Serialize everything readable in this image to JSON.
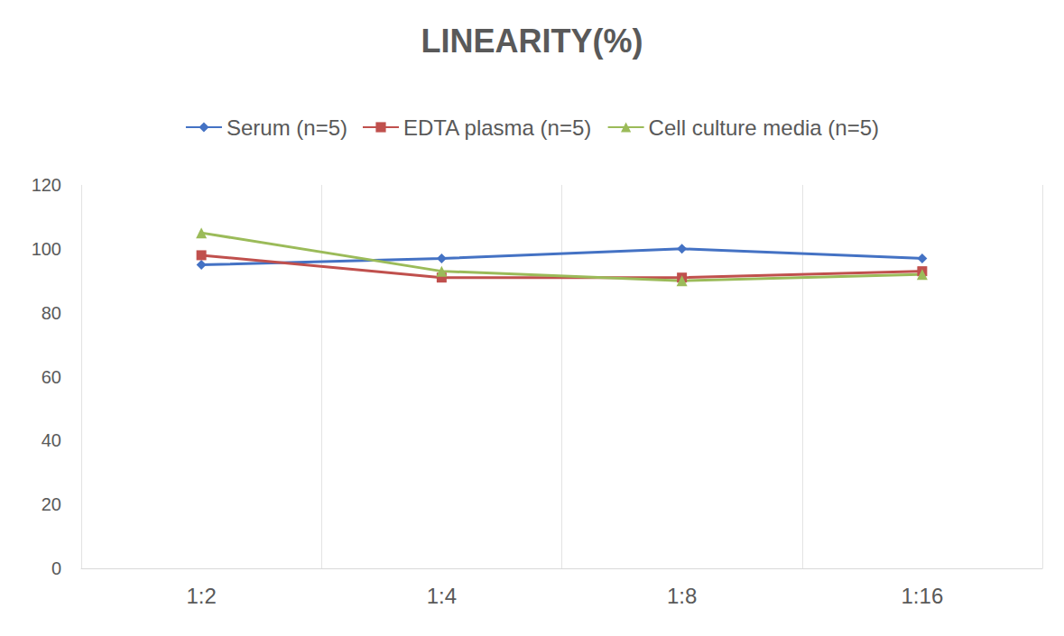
{
  "chart_data": {
    "type": "line",
    "title": "LINEARITY(%)",
    "categories": [
      "1:2",
      "1:4",
      "1:8",
      "1:16"
    ],
    "series": [
      {
        "name": "Serum (n=5)",
        "color": "#4472c4",
        "marker": "diamond",
        "values": [
          95,
          97,
          100,
          97
        ]
      },
      {
        "name": "EDTA plasma (n=5)",
        "color": "#c0504d",
        "marker": "square",
        "values": [
          98,
          91,
          91,
          93
        ]
      },
      {
        "name": "Cell culture media (n=5)",
        "color": "#9bbb59",
        "marker": "triangle",
        "values": [
          105,
          93,
          90,
          92
        ]
      }
    ],
    "ylim": [
      0,
      120
    ],
    "yticks": [
      0,
      20,
      40,
      60,
      80,
      100,
      120
    ],
    "grid": true,
    "legend": "top"
  }
}
